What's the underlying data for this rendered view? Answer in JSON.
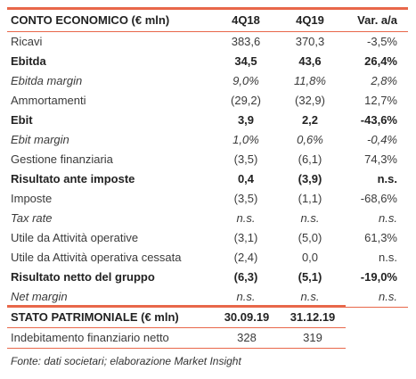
{
  "colors": {
    "accent": "#e8674a"
  },
  "ce": {
    "headers": [
      "CONTO ECONOMICO (€ mln)",
      "4Q18",
      "4Q19",
      "Var. a/a"
    ],
    "rows": [
      {
        "label": "Ricavi",
        "v1": "383,6",
        "v2": "370,3",
        "var": "-3,5%",
        "style": "normal"
      },
      {
        "label": "Ebitda",
        "v1": "34,5",
        "v2": "43,6",
        "var": "26,4%",
        "style": "bold"
      },
      {
        "label": "Ebitda margin",
        "v1": "9,0%",
        "v2": "11,8%",
        "var": "2,8%",
        "style": "ital"
      },
      {
        "label": "Ammortamenti",
        "v1": "(29,2)",
        "v2": "(32,9)",
        "var": "12,7%",
        "style": "normal"
      },
      {
        "label": "Ebit",
        "v1": "3,9",
        "v2": "2,2",
        "var": "-43,6%",
        "style": "bold"
      },
      {
        "label": "Ebit margin",
        "v1": "1,0%",
        "v2": "0,6%",
        "var": "-0,4%",
        "style": "ital"
      },
      {
        "label": "Gestione finanziaria",
        "v1": "(3,5)",
        "v2": "(6,1)",
        "var": "74,3%",
        "style": "normal"
      },
      {
        "label": "Risultato ante imposte",
        "v1": "0,4",
        "v2": "(3,9)",
        "var": "n.s.",
        "style": "bold"
      },
      {
        "label": "Imposte",
        "v1": "(3,5)",
        "v2": "(1,1)",
        "var": "-68,6%",
        "style": "normal"
      },
      {
        "label": "Tax rate",
        "v1": "n.s.",
        "v2": "n.s.",
        "var": "n.s.",
        "style": "ital"
      },
      {
        "label": "Utile da Attività operative",
        "v1": "(3,1)",
        "v2": "(5,0)",
        "var": "61,3%",
        "style": "normal"
      },
      {
        "label": "Utile da Attività operativa cessata",
        "v1": "(2,4)",
        "v2": "0,0",
        "var": "n.s.",
        "style": "normal"
      },
      {
        "label": "Risultato netto del gruppo",
        "v1": "(6,3)",
        "v2": "(5,1)",
        "var": "-19,0%",
        "style": "bold"
      },
      {
        "label": "Net margin",
        "v1": "n.s.",
        "v2": "n.s.",
        "var": "n.s.",
        "style": "ital"
      }
    ]
  },
  "sp": {
    "headers": [
      "STATO PATRIMONIALE (€ mln)",
      "30.09.19",
      "31.12.19"
    ],
    "rows": [
      {
        "label": "Indebitamento finanziario netto",
        "v1": "328",
        "v2": "319"
      }
    ]
  },
  "footnote": "Fonte: dati societari; elaborazione Market Insight"
}
